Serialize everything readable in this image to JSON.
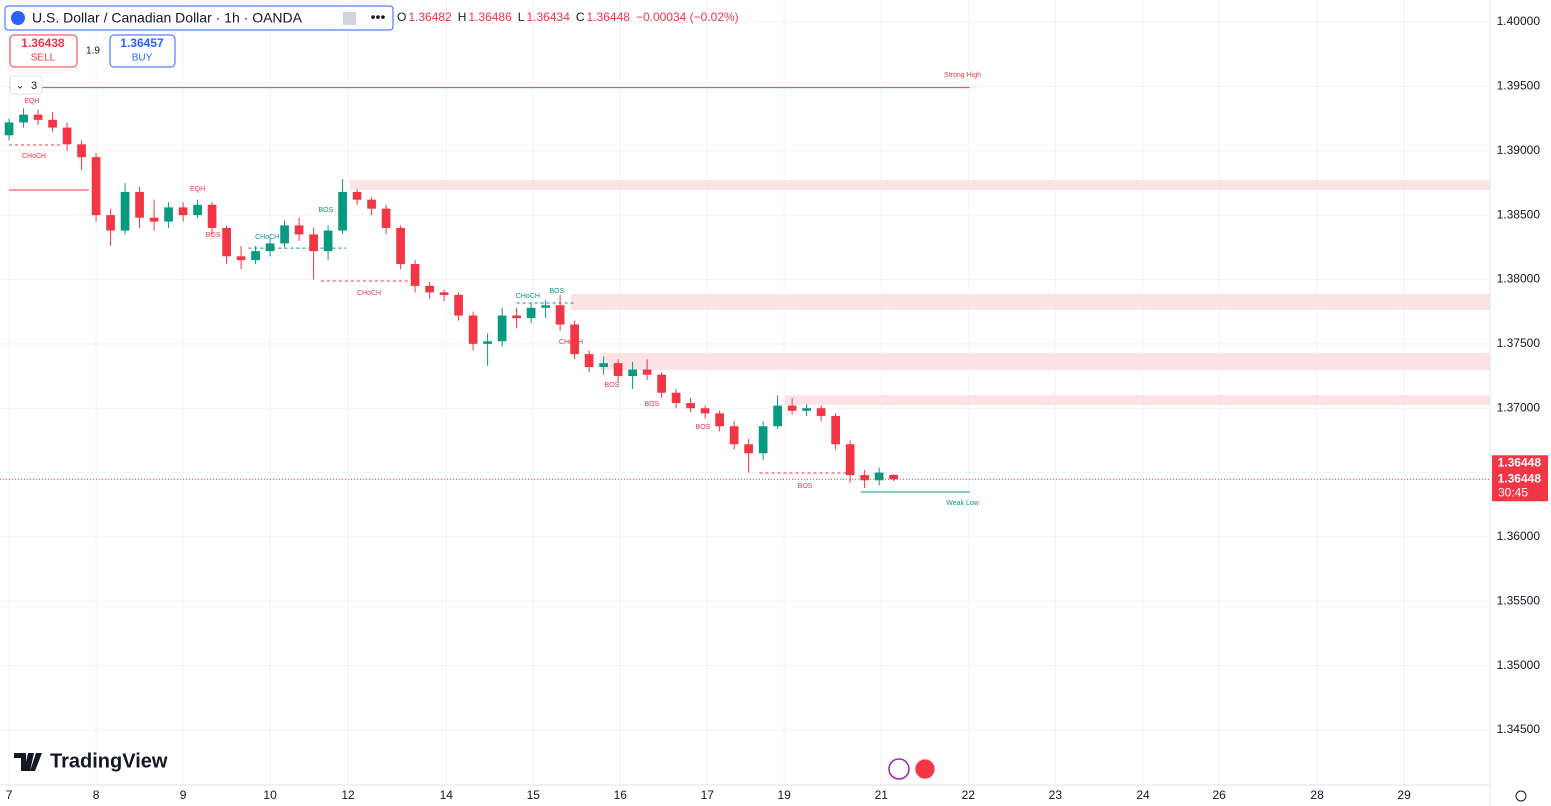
{
  "header": {
    "symbol": "U.S. Dollar / Canadian Dollar · 1h · OANDA",
    "ohlc": [
      {
        "label": "O",
        "value": 1.36482
      },
      {
        "label": "H",
        "value": 1.36486
      },
      {
        "label": "L",
        "value": 1.36434
      },
      {
        "label": "C",
        "value": 1.36448
      }
    ],
    "change": "−0.00034 (−0.02%)",
    "sell_price": "1.36438",
    "sell": "SELL",
    "spread": "1.9",
    "buy_price": "1.36457",
    "buy": "BUY",
    "indicators_count": "3"
  },
  "brand": "TradingView",
  "chart_data": {
    "type": "candlestick",
    "x": [
      0,
      4,
      8,
      12,
      16,
      20,
      24,
      28,
      32,
      36,
      40,
      44,
      48,
      52,
      56,
      60,
      64,
      68,
      72,
      76,
      80,
      84,
      88,
      92,
      96,
      100,
      104,
      108,
      112,
      116,
      120,
      124,
      128,
      132,
      136,
      140,
      144,
      148,
      152,
      156,
      160,
      164,
      168,
      172,
      176,
      180,
      184,
      188,
      192,
      196,
      200,
      204,
      208,
      212,
      216,
      220,
      224,
      228,
      232,
      236,
      240,
      244
    ],
    "open": [
      1.3912,
      1.3922,
      1.3928,
      1.3924,
      1.3918,
      1.3905,
      1.3895,
      1.385,
      1.3838,
      1.3868,
      1.3848,
      1.3845,
      1.3856,
      1.385,
      1.3858,
      1.384,
      1.3818,
      1.3815,
      1.3822,
      1.3828,
      1.3842,
      1.3835,
      1.3822,
      1.3838,
      1.3868,
      1.3862,
      1.3855,
      1.384,
      1.3812,
      1.3795,
      1.379,
      1.3788,
      1.3772,
      1.375,
      1.3752,
      1.3772,
      1.377,
      1.3778,
      1.378,
      1.3765,
      1.3742,
      1.3732,
      1.3735,
      1.3725,
      1.373,
      1.3726,
      1.3712,
      1.3704,
      1.37,
      1.3696,
      1.3686,
      1.3672,
      1.3665,
      1.3686,
      1.3702,
      1.3698,
      1.37,
      1.3694,
      1.3672,
      1.3648,
      1.3644,
      1.36482
    ],
    "high": [
      1.3925,
      1.3933,
      1.3932,
      1.393,
      1.3922,
      1.3908,
      1.3898,
      1.3855,
      1.3875,
      1.3872,
      1.3862,
      1.386,
      1.386,
      1.3862,
      1.386,
      1.3842,
      1.3826,
      1.3826,
      1.3832,
      1.3846,
      1.3848,
      1.384,
      1.3842,
      1.3878,
      1.387,
      1.3864,
      1.3858,
      1.3842,
      1.3815,
      1.3798,
      1.3792,
      1.379,
      1.3775,
      1.3758,
      1.3778,
      1.3778,
      1.3782,
      1.3784,
      1.3788,
      1.3768,
      1.3745,
      1.374,
      1.3738,
      1.3736,
      1.3738,
      1.3728,
      1.3715,
      1.3708,
      1.3702,
      1.3698,
      1.369,
      1.3676,
      1.369,
      1.371,
      1.3708,
      1.3703,
      1.3702,
      1.3696,
      1.3675,
      1.3652,
      1.3654,
      1.36486
    ],
    "low": [
      1.3908,
      1.3918,
      1.392,
      1.3915,
      1.39,
      1.3885,
      1.3845,
      1.3826,
      1.3835,
      1.384,
      1.3838,
      1.384,
      1.3845,
      1.3848,
      1.3835,
      1.3812,
      1.3808,
      1.3812,
      1.3818,
      1.3825,
      1.383,
      1.38,
      1.3815,
      1.3835,
      1.3858,
      1.385,
      1.3835,
      1.3808,
      1.379,
      1.3785,
      1.3783,
      1.3768,
      1.3745,
      1.3733,
      1.3748,
      1.3762,
      1.3766,
      1.377,
      1.376,
      1.3738,
      1.3728,
      1.3726,
      1.372,
      1.3715,
      1.3722,
      1.3708,
      1.37,
      1.3697,
      1.3692,
      1.3682,
      1.3668,
      1.365,
      1.366,
      1.3684,
      1.3695,
      1.3694,
      1.369,
      1.3668,
      1.3642,
      1.3638,
      1.364,
      1.36434
    ],
    "close": [
      1.3922,
      1.3928,
      1.3924,
      1.3918,
      1.3905,
      1.3895,
      1.385,
      1.3838,
      1.3868,
      1.3848,
      1.3845,
      1.3856,
      1.385,
      1.3858,
      1.384,
      1.3818,
      1.3815,
      1.3822,
      1.3828,
      1.3842,
      1.3835,
      1.3822,
      1.3838,
      1.3868,
      1.3862,
      1.3855,
      1.384,
      1.3812,
      1.3795,
      1.379,
      1.3788,
      1.3772,
      1.375,
      1.3752,
      1.3772,
      1.377,
      1.3778,
      1.378,
      1.3765,
      1.3742,
      1.3732,
      1.3735,
      1.3725,
      1.373,
      1.3726,
      1.3712,
      1.3704,
      1.37,
      1.3696,
      1.3686,
      1.3672,
      1.3665,
      1.3686,
      1.3702,
      1.3698,
      1.37,
      1.3694,
      1.3672,
      1.3648,
      1.3644,
      1.365,
      1.36448
    ],
    "up_color": "#089981",
    "down_color": "#f23645",
    "xlim": [
      -2.5,
      408.5
    ],
    "xticks": [
      {
        "value": 0,
        "label": "7"
      },
      {
        "value": 24,
        "label": "8"
      },
      {
        "value": 48,
        "label": "9"
      },
      {
        "value": 72,
        "label": "10"
      },
      {
        "value": 93.5,
        "label": "12"
      },
      {
        "value": 120.6,
        "label": "14"
      },
      {
        "value": 144.6,
        "label": "15"
      },
      {
        "value": 168.6,
        "label": "16"
      },
      {
        "value": 192.6,
        "label": "17"
      },
      {
        "value": 213.8,
        "label": "19"
      },
      {
        "value": 240.6,
        "label": "21"
      },
      {
        "value": 264.6,
        "label": "22"
      },
      {
        "value": 288.6,
        "label": "23"
      },
      {
        "value": 312.8,
        "label": "24"
      },
      {
        "value": 333.8,
        "label": "26"
      },
      {
        "value": 360.8,
        "label": "28"
      },
      {
        "value": 384.8,
        "label": "29"
      }
    ],
    "ylim": [
      1.34073,
      1.40171
    ],
    "yticks": [
      {
        "value": 1.4,
        "label": "1.40000"
      },
      {
        "value": 1.395,
        "label": "1.39500"
      },
      {
        "value": 1.39,
        "label": "1.39000"
      },
      {
        "value": 1.385,
        "label": "1.38500"
      },
      {
        "value": 1.38,
        "label": "1.38000"
      },
      {
        "value": 1.375,
        "label": "1.37500"
      },
      {
        "value": 1.37,
        "label": "1.37000"
      },
      {
        "value": 1.365,
        "label": "1.36500"
      },
      {
        "value": 1.36,
        "label": "1.36000"
      },
      {
        "value": 1.355,
        "label": "1.35500"
      },
      {
        "value": 1.35,
        "label": "1.35000"
      },
      {
        "value": 1.345,
        "label": "1.34500"
      }
    ],
    "grid": true,
    "last_price": {
      "value": 1.36448,
      "label": "1.36448",
      "countdown": "30:45",
      "color": "#f23645"
    },
    "zones": [
      {
        "from": 94,
        "low": 1.38695,
        "high": 1.38773
      },
      {
        "from": 155,
        "low": 1.37763,
        "high": 1.37887
      },
      {
        "from": 163,
        "low": 1.37297,
        "high": 1.37429
      },
      {
        "from": 214,
        "low": 1.37025,
        "high": 1.37102
      }
    ],
    "zone_color": "#fde0e3",
    "lines": [
      {
        "x1": 0,
        "x2": 265,
        "y": 1.3949,
        "color": "#f23645",
        "dashed": false
      },
      {
        "x1": 0,
        "x2": 22,
        "y": 1.38695,
        "color": "#f23645",
        "dashed": false
      },
      {
        "x1": 235,
        "x2": 265,
        "y": 1.36349,
        "color": "#089981",
        "dashed": false
      },
      {
        "x1": 0,
        "x2": 14,
        "y": 1.39045,
        "color": "#f23645",
        "dashed": true
      },
      {
        "x1": 86,
        "x2": 113,
        "y": 1.37988,
        "color": "#f23645",
        "dashed": true
      },
      {
        "x1": 207,
        "x2": 233,
        "y": 1.36497,
        "color": "#f23645",
        "dashed": true
      },
      {
        "x1": 66,
        "x2": 93,
        "y": 1.38244,
        "color": "#089981",
        "dashed": true
      },
      {
        "x1": 140,
        "x2": 156,
        "y": 1.37817,
        "color": "#089981",
        "dashed": true
      }
    ],
    "annotations": [
      {
        "label": "Strong High",
        "x": 263,
        "y": 1.39588,
        "color": "#f23645"
      },
      {
        "label": "Weak Low",
        "x": 263,
        "y": 1.36263,
        "color": "#089981"
      },
      {
        "label": "EQH",
        "x": 6.3,
        "y": 1.39386,
        "color": "#f23645"
      },
      {
        "label": "CHoCH",
        "x": 6.9,
        "y": 1.38959,
        "color": "#f23645"
      },
      {
        "label": "EQH",
        "x": 52,
        "y": 1.38703,
        "color": "#f23645"
      },
      {
        "label": "BOS",
        "x": 56.3,
        "y": 1.38345,
        "color": "#f23645"
      },
      {
        "label": "CHoCH",
        "x": 71.2,
        "y": 1.3833,
        "color": "#089981"
      },
      {
        "label": "BOS",
        "x": 87.4,
        "y": 1.3854,
        "color": "#089981"
      },
      {
        "label": "CHoCH",
        "x": 99.3,
        "y": 1.37895,
        "color": "#f23645"
      },
      {
        "label": "CHoCH",
        "x": 143.1,
        "y": 1.37872,
        "color": "#089981"
      },
      {
        "label": "BOS",
        "x": 151.1,
        "y": 1.37911,
        "color": "#089981"
      },
      {
        "label": "CHoCH",
        "x": 155,
        "y": 1.37515,
        "color": "#f23645"
      },
      {
        "label": "BOS",
        "x": 166.3,
        "y": 1.3718,
        "color": "#f23645"
      },
      {
        "label": "BOS",
        "x": 177.3,
        "y": 1.37032,
        "color": "#f23645"
      },
      {
        "label": "BOS",
        "x": 191.4,
        "y": 1.36854,
        "color": "#f23645"
      },
      {
        "label": "BOS",
        "x": 219.6,
        "y": 1.36395,
        "color": "#f23645"
      }
    ]
  }
}
